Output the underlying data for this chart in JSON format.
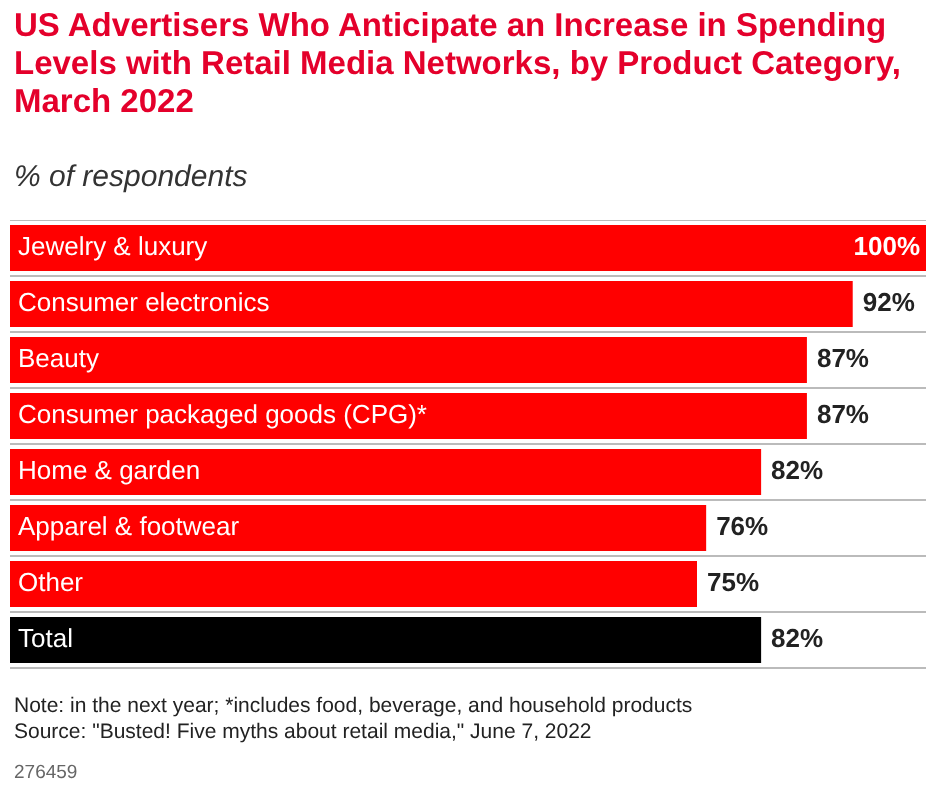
{
  "chart_data": {
    "type": "bar",
    "orientation": "horizontal",
    "title": "US Advertisers Who Anticipate an Increase in Spending Levels with Retail Media Networks, by Product Category, March 2022",
    "subtitle": "% of respondents",
    "categories": [
      "Jewelry & luxury",
      "Consumer electronics",
      "Beauty",
      "Consumer packaged goods (CPG)*",
      "Home & garden",
      "Apparel & footwear",
      "Other",
      "Total"
    ],
    "values": [
      100,
      92,
      87,
      87,
      82,
      76,
      75,
      82
    ],
    "colors": [
      "#ff0000",
      "#ff0000",
      "#ff0000",
      "#ff0000",
      "#ff0000",
      "#ff0000",
      "#ff0000",
      "#000000"
    ],
    "value_labels": [
      "100%",
      "92%",
      "87%",
      "87%",
      "82%",
      "76%",
      "75%",
      "82%"
    ],
    "xlim": [
      0,
      100
    ],
    "grid": "y",
    "legend": false,
    "annotations": [
      "Note: in the next year; *includes food, beverage, and household products",
      "Source: \"Busted! Five myths about retail media,\" June 7, 2022",
      "276459"
    ]
  }
}
